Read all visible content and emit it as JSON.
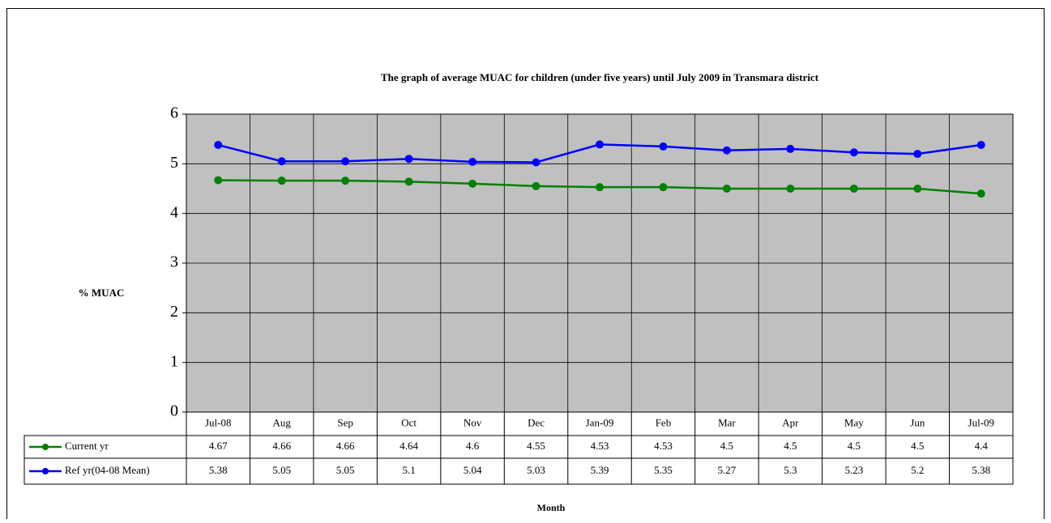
{
  "chart_data": {
    "type": "line",
    "title": "The graph of average MUAC for children (under five years) until July 2009 in  Transmara district",
    "y_label": "% MUAC",
    "x_label": "Month",
    "categories": [
      "Jul-08",
      "Aug",
      "Sep",
      "Oct",
      "Nov",
      "Dec",
      "Jan-09",
      "Feb",
      "Mar",
      "Apr",
      "May",
      "Jun",
      "Jul-09"
    ],
    "series": [
      {
        "name": "Current yr",
        "color": "#008000",
        "values": [
          4.67,
          4.66,
          4.66,
          4.64,
          4.6,
          4.55,
          4.53,
          4.53,
          4.5,
          4.5,
          4.5,
          4.5,
          4.4
        ]
      },
      {
        "name": "Ref yr(04-08 Mean)",
        "color": "#0000ff",
        "values": [
          5.38,
          5.05,
          5.05,
          5.1,
          5.04,
          5.03,
          5.39,
          5.35,
          5.27,
          5.3,
          5.23,
          5.2,
          5.38
        ]
      }
    ],
    "ylim": [
      0,
      6
    ],
    "yticks": [
      0,
      1,
      2,
      3,
      4,
      5,
      6
    ],
    "grid": true,
    "plot_background": "#c0c0c0"
  }
}
